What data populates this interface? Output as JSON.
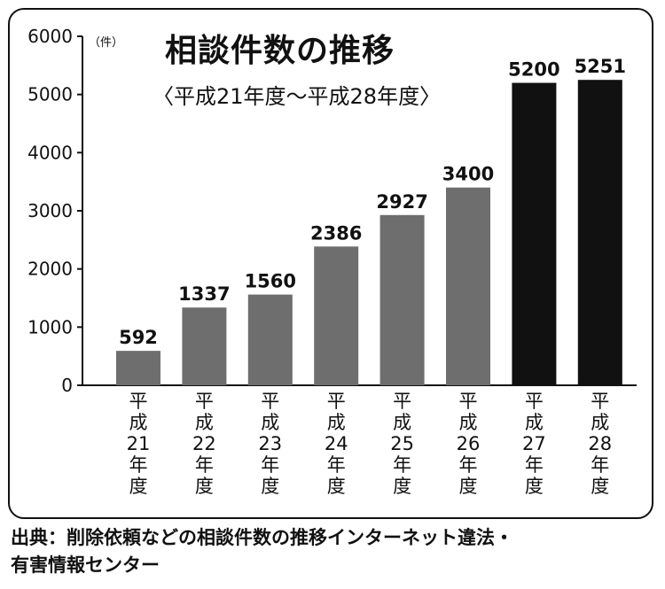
{
  "chart_data": {
    "type": "bar",
    "title": "相談件数の推移",
    "subtitle": "〈平成21年度～平成28年度〉",
    "unit": "（件）",
    "categories": [
      "平成21年度",
      "平成22年度",
      "平成23年度",
      "平成24年度",
      "平成25年度",
      "平成26年度",
      "平成27年度",
      "平成28年度"
    ],
    "values": [
      592,
      1337,
      1560,
      2386,
      2927,
      3400,
      5200,
      5251
    ],
    "ylim": [
      0,
      6000
    ],
    "yticks": [
      0,
      1000,
      2000,
      3000,
      4000,
      5000,
      6000
    ],
    "bar_colors": [
      "#6e6e6e",
      "#6e6e6e",
      "#6e6e6e",
      "#6e6e6e",
      "#6e6e6e",
      "#6e6e6e",
      "#111111",
      "#111111"
    ],
    "grid": false
  },
  "source": {
    "line1": "出典：削除依頼などの相談件数の推移インターネット違法・",
    "line2": "有害情報センター"
  }
}
